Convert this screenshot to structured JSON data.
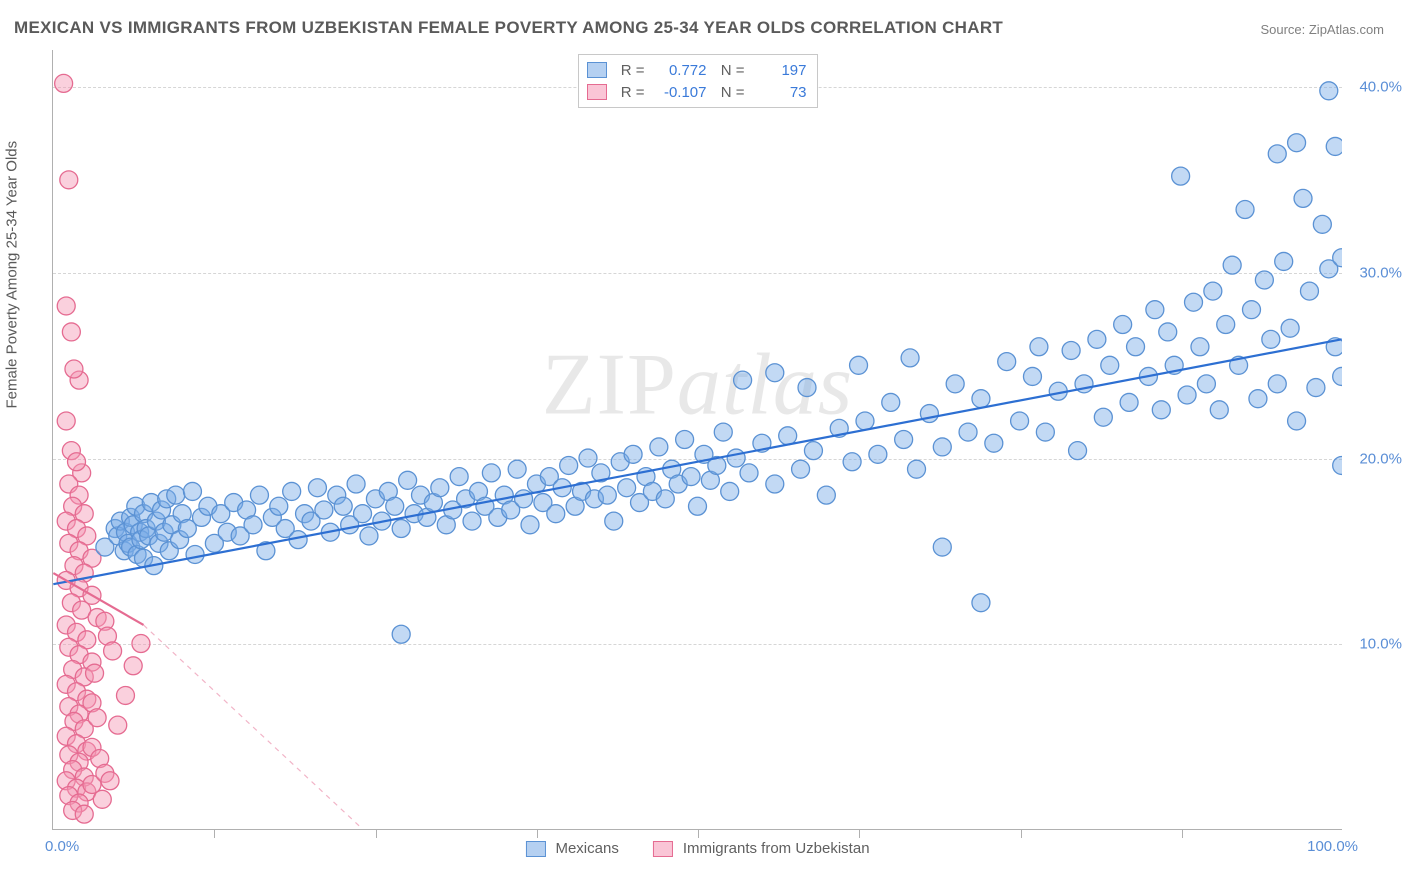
{
  "title": "MEXICAN VS IMMIGRANTS FROM UZBEKISTAN FEMALE POVERTY AMONG 25-34 YEAR OLDS CORRELATION CHART",
  "source": "Source: ZipAtlas.com",
  "ylabel": "Female Poverty Among 25-34 Year Olds",
  "watermark": "ZIPatlas",
  "chart": {
    "type": "scatter",
    "background_color": "#ffffff",
    "grid_color": "#d6d6d6",
    "axis_color": "#b0b0b0",
    "tick_label_color": "#5a8ed6",
    "xlim": [
      0,
      100
    ],
    "ylim": [
      0,
      42
    ],
    "x_axis_labels": {
      "left": "0.0%",
      "right": "100.0%"
    },
    "y_ticks": [
      10,
      20,
      30,
      40
    ],
    "y_tick_labels": [
      "10.0%",
      "20.0%",
      "30.0%",
      "40.0%"
    ],
    "x_tick_positions": [
      12.5,
      25,
      37.5,
      50,
      62.5,
      75,
      87.5
    ],
    "marker_radius": 9,
    "marker_stroke_width": 1.3,
    "line_width": 2.2,
    "series": [
      {
        "name": "Mexicans",
        "fill": "rgba(120,170,230,0.45)",
        "stroke": "#5b92d4",
        "line_color": "#2d6fd2",
        "R": "0.772",
        "N": "197",
        "regression": {
          "x1": 0,
          "y1": 13.2,
          "x2": 100,
          "y2": 26.4
        },
        "points": [
          [
            4,
            15.2
          ],
          [
            4.8,
            16.2
          ],
          [
            5,
            15.8
          ],
          [
            5.2,
            16.6
          ],
          [
            5.5,
            15.0
          ],
          [
            5.6,
            16.0
          ],
          [
            5.8,
            15.4
          ],
          [
            6,
            16.8
          ],
          [
            6,
            15.2
          ],
          [
            6.2,
            16.4
          ],
          [
            6.4,
            17.4
          ],
          [
            6.5,
            14.8
          ],
          [
            6.7,
            16.0
          ],
          [
            6.8,
            15.6
          ],
          [
            7,
            17.0
          ],
          [
            7,
            14.6
          ],
          [
            7.2,
            16.2
          ],
          [
            7.4,
            15.8
          ],
          [
            7.6,
            17.6
          ],
          [
            7.8,
            14.2
          ],
          [
            8,
            16.6
          ],
          [
            8.2,
            15.4
          ],
          [
            8.4,
            17.2
          ],
          [
            8.6,
            16.0
          ],
          [
            8.8,
            17.8
          ],
          [
            9,
            15.0
          ],
          [
            9.2,
            16.4
          ],
          [
            9.5,
            18.0
          ],
          [
            9.8,
            15.6
          ],
          [
            10,
            17.0
          ],
          [
            10.4,
            16.2
          ],
          [
            10.8,
            18.2
          ],
          [
            11,
            14.8
          ],
          [
            11.5,
            16.8
          ],
          [
            12,
            17.4
          ],
          [
            12.5,
            15.4
          ],
          [
            13,
            17.0
          ],
          [
            13.5,
            16.0
          ],
          [
            14,
            17.6
          ],
          [
            14.5,
            15.8
          ],
          [
            15,
            17.2
          ],
          [
            15.5,
            16.4
          ],
          [
            16,
            18.0
          ],
          [
            16.5,
            15.0
          ],
          [
            17,
            16.8
          ],
          [
            17.5,
            17.4
          ],
          [
            18,
            16.2
          ],
          [
            18.5,
            18.2
          ],
          [
            19,
            15.6
          ],
          [
            19.5,
            17.0
          ],
          [
            20,
            16.6
          ],
          [
            20.5,
            18.4
          ],
          [
            21,
            17.2
          ],
          [
            21.5,
            16.0
          ],
          [
            22,
            18.0
          ],
          [
            22.5,
            17.4
          ],
          [
            23,
            16.4
          ],
          [
            23.5,
            18.6
          ],
          [
            24,
            17.0
          ],
          [
            24.5,
            15.8
          ],
          [
            25,
            17.8
          ],
          [
            25.5,
            16.6
          ],
          [
            26,
            18.2
          ],
          [
            26.5,
            17.4
          ],
          [
            27,
            16.2
          ],
          [
            27.5,
            18.8
          ],
          [
            27,
            10.5
          ],
          [
            28,
            17.0
          ],
          [
            28.5,
            18.0
          ],
          [
            29,
            16.8
          ],
          [
            29.5,
            17.6
          ],
          [
            30,
            18.4
          ],
          [
            30.5,
            16.4
          ],
          [
            31,
            17.2
          ],
          [
            31.5,
            19.0
          ],
          [
            32,
            17.8
          ],
          [
            32.5,
            16.6
          ],
          [
            33,
            18.2
          ],
          [
            33.5,
            17.4
          ],
          [
            34,
            19.2
          ],
          [
            34.5,
            16.8
          ],
          [
            35,
            18.0
          ],
          [
            35.5,
            17.2
          ],
          [
            36,
            19.4
          ],
          [
            36.5,
            17.8
          ],
          [
            37,
            16.4
          ],
          [
            37.5,
            18.6
          ],
          [
            38,
            17.6
          ],
          [
            38.5,
            19.0
          ],
          [
            39,
            17.0
          ],
          [
            39.5,
            18.4
          ],
          [
            40,
            19.6
          ],
          [
            40.5,
            17.4
          ],
          [
            41,
            18.2
          ],
          [
            41.5,
            20.0
          ],
          [
            42,
            17.8
          ],
          [
            42.5,
            19.2
          ],
          [
            43,
            18.0
          ],
          [
            43.5,
            16.6
          ],
          [
            44,
            19.8
          ],
          [
            44.5,
            18.4
          ],
          [
            45,
            20.2
          ],
          [
            45.5,
            17.6
          ],
          [
            46,
            19.0
          ],
          [
            46.5,
            18.2
          ],
          [
            47,
            20.6
          ],
          [
            47.5,
            17.8
          ],
          [
            48,
            19.4
          ],
          [
            48.5,
            18.6
          ],
          [
            49,
            21.0
          ],
          [
            49.5,
            19.0
          ],
          [
            50,
            17.4
          ],
          [
            50.5,
            20.2
          ],
          [
            51,
            18.8
          ],
          [
            51.5,
            19.6
          ],
          [
            52,
            21.4
          ],
          [
            52.5,
            18.2
          ],
          [
            53,
            20.0
          ],
          [
            53.5,
            24.2
          ],
          [
            54,
            19.2
          ],
          [
            55,
            20.8
          ],
          [
            56,
            18.6
          ],
          [
            56,
            24.6
          ],
          [
            57,
            21.2
          ],
          [
            58,
            19.4
          ],
          [
            58.5,
            23.8
          ],
          [
            59,
            20.4
          ],
          [
            60,
            18.0
          ],
          [
            61,
            21.6
          ],
          [
            62,
            19.8
          ],
          [
            62.5,
            25.0
          ],
          [
            63,
            22.0
          ],
          [
            64,
            20.2
          ],
          [
            65,
            23.0
          ],
          [
            66,
            21.0
          ],
          [
            66.5,
            25.4
          ],
          [
            67,
            19.4
          ],
          [
            68,
            22.4
          ],
          [
            69,
            20.6
          ],
          [
            69,
            15.2
          ],
          [
            70,
            24.0
          ],
          [
            71,
            21.4
          ],
          [
            72,
            12.2
          ],
          [
            72,
            23.2
          ],
          [
            73,
            20.8
          ],
          [
            74,
            25.2
          ],
          [
            75,
            22.0
          ],
          [
            76,
            24.4
          ],
          [
            76.5,
            26.0
          ],
          [
            77,
            21.4
          ],
          [
            78,
            23.6
          ],
          [
            79,
            25.8
          ],
          [
            79.5,
            20.4
          ],
          [
            80,
            24.0
          ],
          [
            81,
            26.4
          ],
          [
            81.5,
            22.2
          ],
          [
            82,
            25.0
          ],
          [
            83,
            27.2
          ],
          [
            83.5,
            23.0
          ],
          [
            84,
            26.0
          ],
          [
            85,
            24.4
          ],
          [
            85.5,
            28.0
          ],
          [
            86,
            22.6
          ],
          [
            86.5,
            26.8
          ],
          [
            87,
            25.0
          ],
          [
            87.5,
            35.2
          ],
          [
            88,
            23.4
          ],
          [
            88.5,
            28.4
          ],
          [
            89,
            26.0
          ],
          [
            89.5,
            24.0
          ],
          [
            90,
            29.0
          ],
          [
            90.5,
            22.6
          ],
          [
            91,
            27.2
          ],
          [
            91.5,
            30.4
          ],
          [
            92,
            25.0
          ],
          [
            92.5,
            33.4
          ],
          [
            93,
            28.0
          ],
          [
            93.5,
            23.2
          ],
          [
            94,
            29.6
          ],
          [
            94.5,
            26.4
          ],
          [
            95,
            36.4
          ],
          [
            95,
            24.0
          ],
          [
            95.5,
            30.6
          ],
          [
            96,
            27.0
          ],
          [
            96.5,
            37.0
          ],
          [
            96.5,
            22.0
          ],
          [
            97,
            34.0
          ],
          [
            97.5,
            29.0
          ],
          [
            98,
            23.8
          ],
          [
            98.5,
            32.6
          ],
          [
            99,
            30.2
          ],
          [
            99,
            39.8
          ],
          [
            99.5,
            26.0
          ],
          [
            99.5,
            36.8
          ],
          [
            100,
            19.6
          ],
          [
            100,
            24.4
          ],
          [
            100,
            30.8
          ]
        ]
      },
      {
        "name": "Immigrants from Uzbekistan",
        "fill": "rgba(245,150,180,0.45)",
        "stroke": "#e56b91",
        "line_color": "#e56b91",
        "dashed_extension": true,
        "R": "-0.107",
        "N": "73",
        "regression": {
          "x1": 0,
          "y1": 13.8,
          "x2": 7,
          "y2": 11.0
        },
        "regression_dashed": {
          "x1": 7,
          "y1": 11.0,
          "x2": 24,
          "y2": 0
        },
        "points": [
          [
            0.8,
            40.2
          ],
          [
            1.2,
            35.0
          ],
          [
            1.0,
            28.2
          ],
          [
            1.4,
            26.8
          ],
          [
            2.0,
            24.2
          ],
          [
            1.6,
            24.8
          ],
          [
            1.0,
            22.0
          ],
          [
            1.4,
            20.4
          ],
          [
            2.2,
            19.2
          ],
          [
            1.8,
            19.8
          ],
          [
            1.2,
            18.6
          ],
          [
            2.0,
            18.0
          ],
          [
            1.5,
            17.4
          ],
          [
            2.4,
            17.0
          ],
          [
            1.0,
            16.6
          ],
          [
            1.8,
            16.2
          ],
          [
            2.6,
            15.8
          ],
          [
            1.2,
            15.4
          ],
          [
            2.0,
            15.0
          ],
          [
            3.0,
            14.6
          ],
          [
            1.6,
            14.2
          ],
          [
            2.4,
            13.8
          ],
          [
            1.0,
            13.4
          ],
          [
            2.0,
            13.0
          ],
          [
            3.0,
            12.6
          ],
          [
            1.4,
            12.2
          ],
          [
            2.2,
            11.8
          ],
          [
            3.4,
            11.4
          ],
          [
            1.0,
            11.0
          ],
          [
            1.8,
            10.6
          ],
          [
            2.6,
            10.2
          ],
          [
            4.0,
            11.2
          ],
          [
            1.2,
            9.8
          ],
          [
            2.0,
            9.4
          ],
          [
            3.0,
            9.0
          ],
          [
            4.2,
            10.4
          ],
          [
            1.5,
            8.6
          ],
          [
            2.4,
            8.2
          ],
          [
            1.0,
            7.8
          ],
          [
            3.2,
            8.4
          ],
          [
            1.8,
            7.4
          ],
          [
            2.6,
            7.0
          ],
          [
            4.6,
            9.6
          ],
          [
            1.2,
            6.6
          ],
          [
            2.0,
            6.2
          ],
          [
            3.0,
            6.8
          ],
          [
            1.6,
            5.8
          ],
          [
            2.4,
            5.4
          ],
          [
            1.0,
            5.0
          ],
          [
            3.4,
            6.0
          ],
          [
            1.8,
            4.6
          ],
          [
            2.6,
            4.2
          ],
          [
            1.2,
            4.0
          ],
          [
            2.0,
            3.6
          ],
          [
            3.0,
            4.4
          ],
          [
            1.5,
            3.2
          ],
          [
            2.4,
            2.8
          ],
          [
            1.0,
            2.6
          ],
          [
            3.6,
            3.8
          ],
          [
            1.8,
            2.2
          ],
          [
            2.6,
            2.0
          ],
          [
            1.2,
            1.8
          ],
          [
            2.0,
            1.4
          ],
          [
            3.0,
            2.4
          ],
          [
            4.0,
            3.0
          ],
          [
            1.5,
            1.0
          ],
          [
            2.4,
            0.8
          ],
          [
            5.0,
            5.6
          ],
          [
            3.8,
            1.6
          ],
          [
            5.6,
            7.2
          ],
          [
            6.2,
            8.8
          ],
          [
            4.4,
            2.6
          ],
          [
            6.8,
            10.0
          ]
        ]
      }
    ],
    "legend_top_labels": {
      "R": "R =",
      "N": "N ="
    },
    "legend_bottom": [
      {
        "label": "Mexicans",
        "fill": "rgba(120,170,230,0.55)",
        "stroke": "#5b92d4"
      },
      {
        "label": "Immigrants from Uzbekistan",
        "fill": "rgba(245,150,180,0.55)",
        "stroke": "#e56b91"
      }
    ]
  }
}
